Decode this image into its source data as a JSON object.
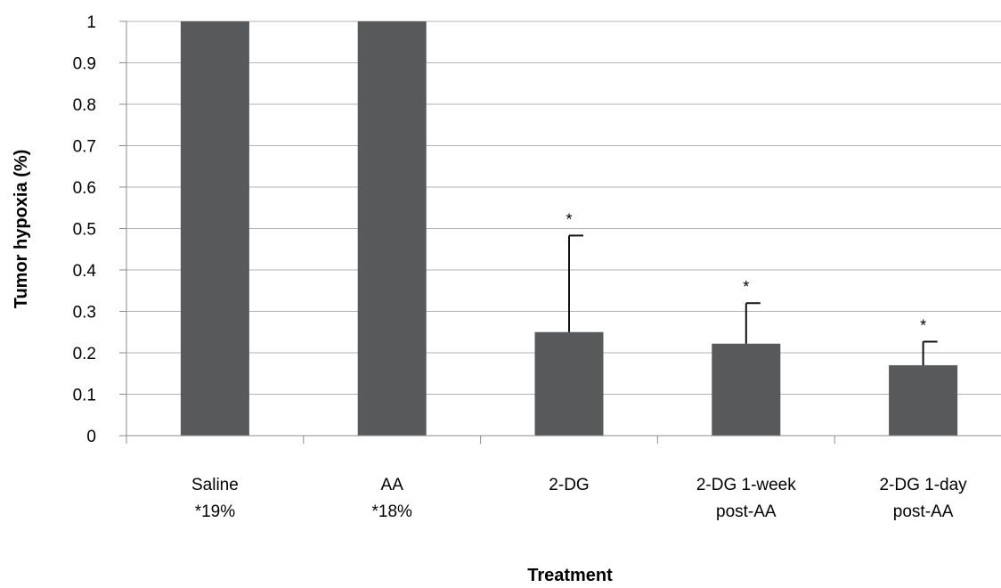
{
  "chart_data": {
    "type": "bar",
    "title": "",
    "xlabel": "Treatment",
    "ylabel": "Tumor hypoxia (%)",
    "ylim": [
      0,
      1
    ],
    "yticks": [
      0,
      0.1,
      0.2,
      0.3,
      0.4,
      0.5,
      0.6,
      0.7,
      0.8,
      0.9,
      1
    ],
    "ytick_labels": [
      "0",
      "0.1",
      "0.2",
      "0.3",
      "0.4",
      "0.5",
      "0.6",
      "0.7",
      "0.8",
      "0.9",
      "1"
    ],
    "grid": true,
    "legend": "none",
    "categories": [
      [
        "Saline",
        "*19%"
      ],
      [
        "AA",
        "*18%"
      ],
      [
        "2-DG"
      ],
      [
        "2-DG 1-week",
        "post-AA"
      ],
      [
        "2-DG 1-day",
        "post-AA"
      ]
    ],
    "values": [
      1,
      1,
      0.25,
      0.222,
      0.17
    ],
    "error_upper": [
      null,
      null,
      0.233,
      0.098,
      0.057
    ],
    "significance": [
      "",
      "",
      "*",
      "*",
      "*"
    ],
    "bar_color": "#58595b",
    "grid_color": "#b3b3b3",
    "axis_color": "#8c8c8c"
  }
}
